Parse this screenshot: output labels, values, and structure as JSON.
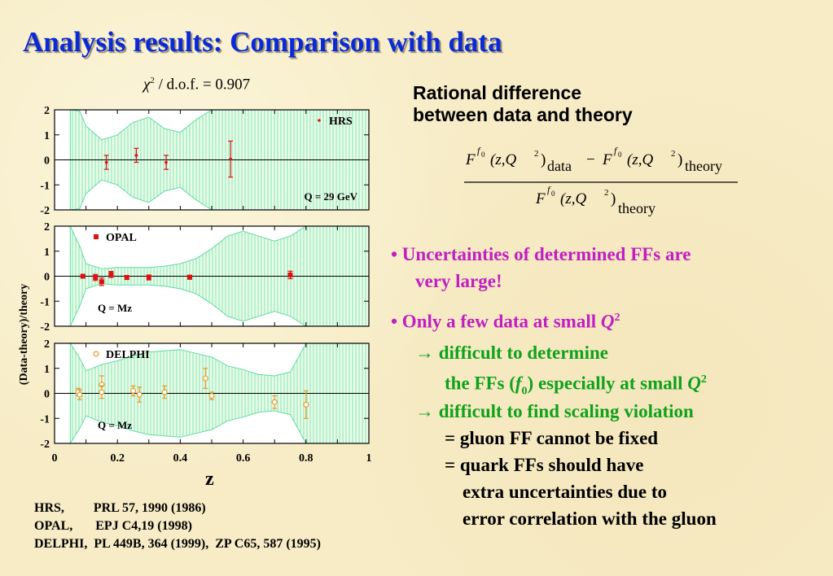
{
  "title": "Analysis results: Comparison with data",
  "chi2": {
    "symbol": "χ",
    "power": "2",
    "text": " / d.o.f. = 0.907"
  },
  "ylabel": "(Data-theory)/theory",
  "xlabel": "z",
  "right": {
    "heading_line1": "Rational difference",
    "heading_line2": "between data and theory",
    "formula": {
      "F": "F",
      "f0": "f",
      "f0_sub": "0",
      "args": "(z,Q",
      "sq": "2",
      "close": ")",
      "data": "data",
      "theory": "theory",
      "minus": "−"
    },
    "bullet1_line1": "•  Uncertainties of determined FFs are",
    "bullet1_line2": "very large!",
    "bullet2": "•  Only a few data at small ",
    "bullet2_q": "Q",
    "bullet2_q2": "2",
    "arrow": "→",
    "sub1_line1": " difficult to determine",
    "sub1_line2a": "the FFs (",
    "sub1_f": "f",
    "sub1_f0": "0",
    "sub1_line2b": ") especially at small ",
    "sub1_q": "Q",
    "sub1_q2": "2",
    "sub2_line1": " difficult to find scaling violation",
    "sub2_line2": "= gluon FF cannot be fixed",
    "sub2_line3": "= quark FFs should have",
    "sub2_line4": "extra uncertainties due to",
    "sub2_line5": "error correlation with the gluon"
  },
  "references": [
    "HRS,         PRL 57, 1990 (1986)",
    "OPAL,       EPJ C4,19 (1998)",
    "DELPHI,  PL 449B, 364 (1999),  ZP C65, 587 (1995)"
  ],
  "colors": {
    "title": "#0a2ad8",
    "band": "#7ee7b6",
    "hrs": "#e01010",
    "opal": "#e01010",
    "delphi": "#e89a2a",
    "bullet": "#c21ec2",
    "arrow": "#0fa21b"
  },
  "chart_data": [
    {
      "type": "scatter",
      "panel": "top",
      "legend": "HRS",
      "marker": "dot",
      "annotation": "Q = 29 GeV",
      "xlim": [
        0,
        1
      ],
      "ylim": [
        -2,
        2
      ],
      "yticks": [
        "2",
        "1",
        "0",
        "-1",
        "-2"
      ],
      "points": [
        {
          "x": 0.165,
          "y": -0.1,
          "err": 0.28
        },
        {
          "x": 0.26,
          "y": 0.18,
          "err": 0.28
        },
        {
          "x": 0.355,
          "y": -0.1,
          "err": 0.28
        },
        {
          "x": 0.56,
          "y": 0.03,
          "err": 0.72
        }
      ],
      "band": {
        "x": [
          0.05,
          0.08,
          0.1,
          0.15,
          0.2,
          0.25,
          0.3,
          0.35,
          0.4,
          0.45,
          0.5,
          0.55,
          0.6,
          0.65,
          0.7,
          0.75,
          0.8,
          0.85,
          0.9,
          0.95,
          1.0
        ],
        "upper": [
          2.0,
          1.95,
          1.35,
          0.8,
          1.0,
          1.5,
          1.7,
          1.25,
          1.1,
          1.6,
          2.0,
          2.0,
          2.0,
          2.0,
          2.0,
          2.0,
          2.0,
          2.0,
          2.0,
          2.0,
          2.0
        ],
        "lower": [
          -2.0,
          -1.95,
          -1.35,
          -0.8,
          -1.0,
          -1.5,
          -1.7,
          -1.25,
          -1.1,
          -1.6,
          -2.0,
          -2.0,
          -2.0,
          -2.0,
          -2.0,
          -2.0,
          -2.0,
          -2.0,
          -2.0,
          -2.0,
          -2.0
        ]
      }
    },
    {
      "type": "scatter",
      "panel": "middle",
      "legend": "OPAL",
      "marker": "square",
      "annotation": "Q = Mz",
      "xlim": [
        0,
        1
      ],
      "ylim": [
        -2,
        2
      ],
      "yticks": [
        "2",
        "1",
        "0",
        "-1",
        "-2"
      ],
      "points": [
        {
          "x": 0.09,
          "y": 0.0,
          "err": 0.06
        },
        {
          "x": 0.13,
          "y": -0.05,
          "err": 0.12
        },
        {
          "x": 0.15,
          "y": -0.22,
          "err": 0.15
        },
        {
          "x": 0.18,
          "y": 0.07,
          "err": 0.12
        },
        {
          "x": 0.23,
          "y": -0.05,
          "err": 0.08
        },
        {
          "x": 0.3,
          "y": -0.05,
          "err": 0.1
        },
        {
          "x": 0.43,
          "y": -0.04,
          "err": 0.08
        },
        {
          "x": 0.75,
          "y": 0.05,
          "err": 0.15
        }
      ],
      "band": {
        "x": [
          0.05,
          0.08,
          0.1,
          0.15,
          0.2,
          0.25,
          0.3,
          0.35,
          0.4,
          0.45,
          0.5,
          0.55,
          0.6,
          0.65,
          0.7,
          0.75,
          0.8,
          0.85,
          0.9,
          0.95,
          1.0
        ],
        "upper": [
          2.0,
          1.2,
          0.5,
          0.3,
          0.35,
          0.35,
          0.35,
          0.4,
          0.5,
          0.7,
          1.1,
          1.6,
          1.8,
          1.6,
          1.4,
          1.6,
          2.0,
          2.0,
          2.0,
          2.0,
          2.0
        ],
        "lower": [
          -2.0,
          -1.2,
          -0.5,
          -0.3,
          -0.35,
          -0.35,
          -0.35,
          -0.4,
          -0.5,
          -0.7,
          -1.1,
          -1.6,
          -1.8,
          -1.6,
          -1.4,
          -1.6,
          -2.0,
          -2.0,
          -2.0,
          -2.0,
          -2.0
        ]
      }
    },
    {
      "type": "scatter",
      "panel": "bottom",
      "legend": "DELPHI",
      "marker": "open-circle",
      "annotation": "Q = Mz",
      "xlim": [
        0,
        1
      ],
      "ylim": [
        -2,
        2
      ],
      "xticks": [
        "0",
        "0.2",
        "0.4",
        "0.6",
        "0.8",
        "1"
      ],
      "yticks": [
        "2",
        "1",
        "0",
        "-1",
        "-2"
      ],
      "points": [
        {
          "x": 0.075,
          "y": 0.05,
          "err": 0.15
        },
        {
          "x": 0.08,
          "y": -0.05,
          "err": 0.2
        },
        {
          "x": 0.15,
          "y": 0.35,
          "err": 0.35
        },
        {
          "x": 0.15,
          "y": 0.05,
          "err": 0.25
        },
        {
          "x": 0.25,
          "y": 0.1,
          "err": 0.2
        },
        {
          "x": 0.27,
          "y": -0.05,
          "err": 0.3
        },
        {
          "x": 0.35,
          "y": 0.05,
          "err": 0.25
        },
        {
          "x": 0.48,
          "y": 0.6,
          "err": 0.4
        },
        {
          "x": 0.5,
          "y": -0.1,
          "err": 0.15
        },
        {
          "x": 0.7,
          "y": -0.35,
          "err": 0.25
        },
        {
          "x": 0.8,
          "y": -0.45,
          "err": 0.55
        }
      ],
      "band": {
        "x": [
          0.05,
          0.08,
          0.1,
          0.15,
          0.2,
          0.25,
          0.3,
          0.35,
          0.4,
          0.45,
          0.5,
          0.55,
          0.6,
          0.65,
          0.7,
          0.75,
          0.8,
          0.85,
          0.9,
          0.95,
          1.0
        ],
        "upper": [
          2.0,
          1.4,
          0.9,
          1.15,
          1.3,
          1.5,
          1.65,
          1.7,
          1.75,
          1.6,
          1.45,
          1.1,
          0.95,
          0.75,
          0.7,
          0.85,
          2.0,
          2.0,
          2.0,
          2.0,
          2.0
        ],
        "lower": [
          -2.0,
          -1.4,
          -0.9,
          -1.15,
          -1.3,
          -1.5,
          -1.65,
          -1.7,
          -1.75,
          -1.6,
          -1.45,
          -1.1,
          -0.95,
          -0.75,
          -0.7,
          -0.85,
          -2.0,
          -2.0,
          -2.0,
          -2.0,
          -2.0
        ]
      }
    }
  ]
}
